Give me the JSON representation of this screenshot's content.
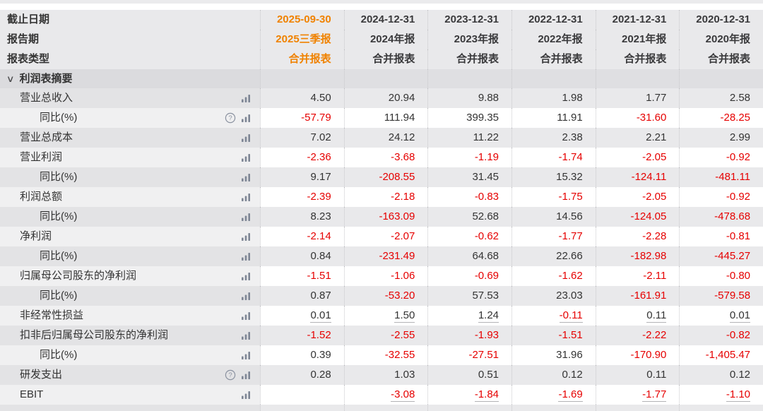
{
  "colors": {
    "accent_orange": "#f08200",
    "negative_red": "#e60000",
    "text_dark": "#333333",
    "stripe_gray": "#e9e9eb",
    "section_gray": "#dcdcdf"
  },
  "icons": {
    "chart_icon": "bar-chart-icon",
    "help_icon": "question-mark-icon",
    "chevron": "chevron-down-icon"
  },
  "header": {
    "rows": [
      {
        "label": "截止日期",
        "values": [
          "2025-09-30",
          "2024-12-31",
          "2023-12-31",
          "2022-12-31",
          "2021-12-31",
          "2020-12-31"
        ]
      },
      {
        "label": "报告期",
        "values": [
          "2025三季报",
          "2024年报",
          "2023年报",
          "2022年报",
          "2021年报",
          "2020年报"
        ]
      },
      {
        "label": "报表类型",
        "values": [
          "合并报表",
          "合并报表",
          "合并报表",
          "合并报表",
          "合并报表",
          "合并报表"
        ]
      }
    ]
  },
  "section": {
    "title": "利润表摘要"
  },
  "table": {
    "rows": [
      {
        "label": "营业总收入",
        "indent": 1,
        "help": false,
        "underline": false,
        "values": [
          "4.50",
          "20.94",
          "9.88",
          "1.98",
          "1.77",
          "2.58"
        ]
      },
      {
        "label": "同比(%)",
        "indent": 2,
        "help": true,
        "underline": false,
        "values": [
          "-57.79",
          "111.94",
          "399.35",
          "11.91",
          "-31.60",
          "-28.25"
        ]
      },
      {
        "label": "营业总成本",
        "indent": 1,
        "help": false,
        "underline": false,
        "values": [
          "7.02",
          "24.12",
          "11.22",
          "2.38",
          "2.21",
          "2.99"
        ]
      },
      {
        "label": "营业利润",
        "indent": 1,
        "help": false,
        "underline": false,
        "values": [
          "-2.36",
          "-3.68",
          "-1.19",
          "-1.74",
          "-2.05",
          "-0.92"
        ]
      },
      {
        "label": "同比(%)",
        "indent": 2,
        "help": false,
        "underline": false,
        "values": [
          "9.17",
          "-208.55",
          "31.45",
          "15.32",
          "-124.11",
          "-481.11"
        ]
      },
      {
        "label": "利润总额",
        "indent": 1,
        "help": false,
        "underline": false,
        "values": [
          "-2.39",
          "-2.18",
          "-0.83",
          "-1.75",
          "-2.05",
          "-0.92"
        ]
      },
      {
        "label": "同比(%)",
        "indent": 2,
        "help": false,
        "underline": false,
        "values": [
          "8.23",
          "-163.09",
          "52.68",
          "14.56",
          "-124.05",
          "-478.68"
        ]
      },
      {
        "label": "净利润",
        "indent": 1,
        "help": false,
        "underline": false,
        "values": [
          "-2.14",
          "-2.07",
          "-0.62",
          "-1.77",
          "-2.28",
          "-0.81"
        ]
      },
      {
        "label": "同比(%)",
        "indent": 2,
        "help": false,
        "underline": false,
        "values": [
          "0.84",
          "-231.49",
          "64.68",
          "22.66",
          "-182.98",
          "-445.27"
        ]
      },
      {
        "label": "归属母公司股东的净利润",
        "indent": 1,
        "help": false,
        "underline": false,
        "values": [
          "-1.51",
          "-1.06",
          "-0.69",
          "-1.62",
          "-2.11",
          "-0.80"
        ]
      },
      {
        "label": "同比(%)",
        "indent": 2,
        "help": false,
        "underline": false,
        "values": [
          "0.87",
          "-53.20",
          "57.53",
          "23.03",
          "-161.91",
          "-579.58"
        ]
      },
      {
        "label": "非经常性损益",
        "indent": 1,
        "help": false,
        "underline": true,
        "values": [
          "0.01",
          "1.50",
          "1.24",
          "-0.11",
          "0.11",
          "0.01"
        ]
      },
      {
        "label": "扣非后归属母公司股东的净利润",
        "indent": 1,
        "help": false,
        "underline": false,
        "values": [
          "-1.52",
          "-2.55",
          "-1.93",
          "-1.51",
          "-2.22",
          "-0.82"
        ]
      },
      {
        "label": "同比(%)",
        "indent": 2,
        "help": false,
        "underline": false,
        "values": [
          "0.39",
          "-32.55",
          "-27.51",
          "31.96",
          "-170.90",
          "-1,405.47"
        ]
      },
      {
        "label": "研发支出",
        "indent": 1,
        "help": true,
        "underline": false,
        "values": [
          "0.28",
          "1.03",
          "0.51",
          "0.12",
          "0.11",
          "0.12"
        ]
      },
      {
        "label": "EBIT",
        "indent": 1,
        "help": false,
        "underline": true,
        "values": [
          "",
          "-3.08",
          "-1.84",
          "-1.69",
          "-1.77",
          "-1.10"
        ]
      }
    ]
  }
}
